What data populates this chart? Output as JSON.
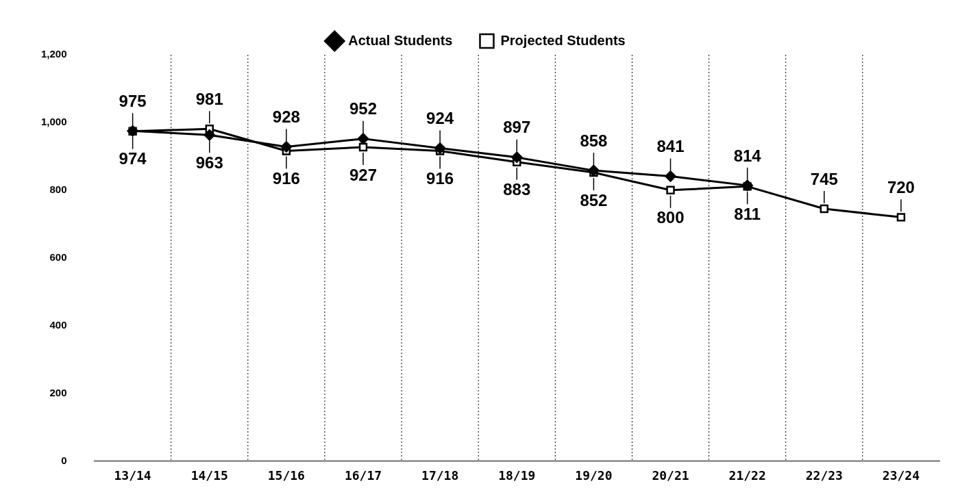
{
  "chart_data": {
    "type": "line",
    "categories": [
      "13/14",
      "14/15",
      "15/16",
      "16/17",
      "17/18",
      "18/19",
      "19/20",
      "20/21",
      "21/22",
      "22/23",
      "23/24"
    ],
    "series": [
      {
        "name": "Actual Students",
        "color": "#000000",
        "marker": "diamond",
        "values": [
          975,
          963,
          928,
          952,
          924,
          897,
          858,
          841,
          814,
          null,
          null
        ]
      },
      {
        "name": "Projected Students",
        "color": "#000000",
        "marker": "square",
        "values": [
          974,
          981,
          916,
          927,
          916,
          883,
          852,
          800,
          811,
          745,
          720
        ]
      }
    ],
    "ylim": [
      0,
      1200
    ],
    "yticks": [
      0,
      200,
      400,
      600,
      800,
      {
        "value": 1000,
        "label": "1,000"
      },
      {
        "value": 1200,
        "label": "1,200"
      }
    ],
    "grid": "x",
    "legend": "top",
    "data_labels": true,
    "line_style": "solid"
  }
}
